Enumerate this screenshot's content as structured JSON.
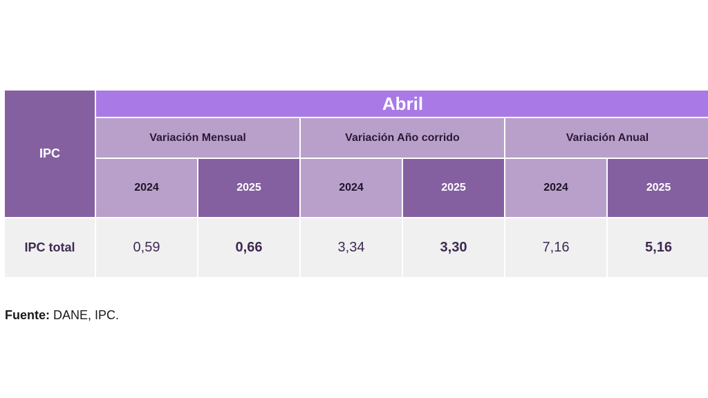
{
  "table": {
    "row_header": "IPC",
    "month": "Abril",
    "groups": [
      {
        "label": "Variación Mensual",
        "years": [
          "2024",
          "2025"
        ]
      },
      {
        "label": "Variación Año corrido",
        "years": [
          "2024",
          "2025"
        ]
      },
      {
        "label": "Variación Anual",
        "years": [
          "2024",
          "2025"
        ]
      }
    ],
    "rows": [
      {
        "label": "IPC total",
        "values": [
          "0,59",
          "0,66",
          "3,34",
          "3,30",
          "7,16",
          "5,16"
        ]
      }
    ]
  },
  "colors": {
    "dark_purple": "#8460a0",
    "header_purple": "#a97ae6",
    "light_purple": "#b9a0cb",
    "row_bg": "#f0f0f0",
    "text_purple": "#3d2a52"
  },
  "source": {
    "label": "Fuente:",
    "text": " DANE, IPC."
  }
}
